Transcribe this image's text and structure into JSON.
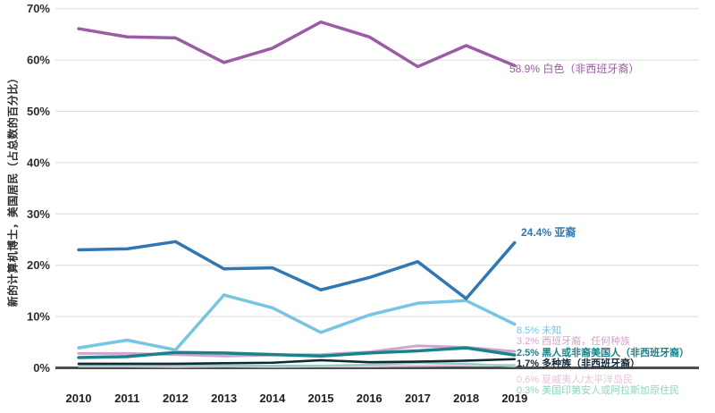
{
  "chart_data": {
    "type": "line",
    "title": "",
    "xlabel": "",
    "ylabel": "新的计算机博士，美国居民（占总数的百分比）",
    "ylim": [
      0,
      70
    ],
    "grid": true,
    "legend_position": "end-of-line-labels",
    "y_ticks": [
      "0%",
      "10%",
      "20%",
      "30%",
      "40%",
      "50%",
      "60%",
      "70%"
    ],
    "categories": [
      "2010",
      "2011",
      "2012",
      "2013",
      "2014",
      "2015",
      "2016",
      "2017",
      "2018",
      "2019"
    ],
    "series": [
      {
        "id": "white-non-hispanic",
        "name": "白色（非西班牙裔）",
        "end_label": "58.9% 白色（非西班牙裔）",
        "end_value": "58.9%",
        "color": "#9B5BA5",
        "values": [
          66.1,
          64.5,
          64.3,
          59.5,
          62.3,
          67.4,
          64.5,
          58.7,
          62.8,
          58.9
        ]
      },
      {
        "id": "asian",
        "name": "亚裔",
        "end_label": "24.4% 亚裔",
        "end_value": "24.4%",
        "color": "#2F77B5",
        "values": [
          23.0,
          23.2,
          24.6,
          19.3,
          19.5,
          15.2,
          17.6,
          20.7,
          13.5,
          24.4
        ]
      },
      {
        "id": "unknown",
        "name": "未知",
        "end_label": "8.5% 未知",
        "end_value": "8.5%",
        "color": "#76C5E3",
        "values": [
          3.9,
          5.4,
          3.5,
          14.2,
          11.7,
          6.9,
          10.3,
          12.6,
          13.1,
          8.5
        ]
      },
      {
        "id": "hispanic-any-race",
        "name": "西班牙裔，任何种族",
        "end_label": "3.2% 西班牙裔，任何种族",
        "end_value": "3.2%",
        "color": "#D3A4CB",
        "values": [
          2.8,
          2.8,
          2.6,
          2.3,
          2.5,
          2.6,
          3.1,
          4.3,
          4.0,
          3.2
        ]
      },
      {
        "id": "black-african-american",
        "name": "黑人或非裔美国人（非西班牙裔）",
        "end_label": "2.5% 黑人或非裔美国人（非西班牙裔）",
        "end_value": "2.5%",
        "color": "#19838C",
        "values": [
          2.0,
          2.2,
          3.0,
          2.9,
          2.6,
          2.3,
          2.9,
          3.3,
          3.9,
          2.5
        ]
      },
      {
        "id": "multiracial-non-hispanic",
        "name": "多种族（非西班牙裔）",
        "end_label": "1.7% 多种族（非西班牙裔）",
        "end_value": "1.7%",
        "color": "#152635",
        "values": [
          0.8,
          0.8,
          0.8,
          0.9,
          1.0,
          1.5,
          1.1,
          1.2,
          1.4,
          1.7
        ]
      },
      {
        "id": "hawaiian-pacific-islander",
        "name": "夏威夷人/太平洋岛民",
        "end_label": "0.6% 夏威夷人/太平洋岛民",
        "end_value": "0.6%",
        "color": "#E6C3DC",
        "values": [
          0.3,
          0.3,
          0.2,
          0.3,
          0.2,
          0.3,
          0.3,
          0.4,
          0.5,
          0.6
        ]
      },
      {
        "id": "american-indian-alaska-native",
        "name": "美国印第安人或阿拉斯加原住民",
        "end_label": "0.3% 美国印第安人或阿拉斯加原住民",
        "end_value": "0.3%",
        "color": "#8ED3C2",
        "values": [
          0.4,
          0.4,
          0.5,
          0.4,
          0.4,
          0.4,
          0.6,
          1.0,
          0.8,
          0.3
        ]
      }
    ]
  }
}
